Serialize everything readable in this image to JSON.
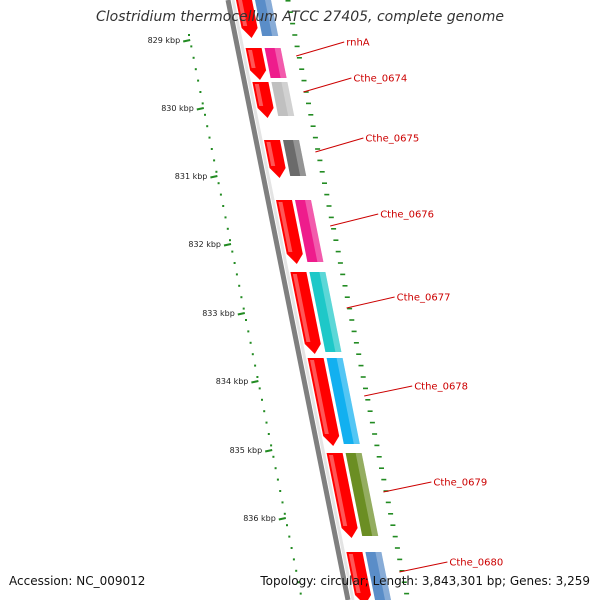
{
  "title": "Clostridium thermocellum ATCC 27405, complete genome",
  "accession": "Accession: NC_009012",
  "summary": "Topology: circular; Length: 3,843,301 bp; Genes: 3,259",
  "scale": {
    "tick_color": "#228b22",
    "labels": [
      "829 kbp",
      "830 kbp",
      "831 kbp",
      "832 kbp",
      "833 kbp",
      "834 kbp",
      "835 kbp",
      "836 kbp"
    ]
  },
  "backbone_color": "#7f7f7f",
  "cds_color": "#ff0000",
  "genes": [
    {
      "label": "",
      "color": "#5a8dc8"
    },
    {
      "label": "rnhA",
      "color": "#ee1c8c"
    },
    {
      "label": "Cthe_0674",
      "color": "#c0c0c0"
    },
    {
      "label": "Cthe_0675",
      "color": "#6b6b6b"
    },
    {
      "label": "Cthe_0676",
      "color": "#ee1c8c"
    },
    {
      "label": "Cthe_0677",
      "color": "#1ec8c8"
    },
    {
      "label": "Cthe_0678",
      "color": "#12b0f0"
    },
    {
      "label": "Cthe_0679",
      "color": "#6b8e23"
    },
    {
      "label": "Cthe_0680",
      "color": "#5a8dc8"
    }
  ]
}
